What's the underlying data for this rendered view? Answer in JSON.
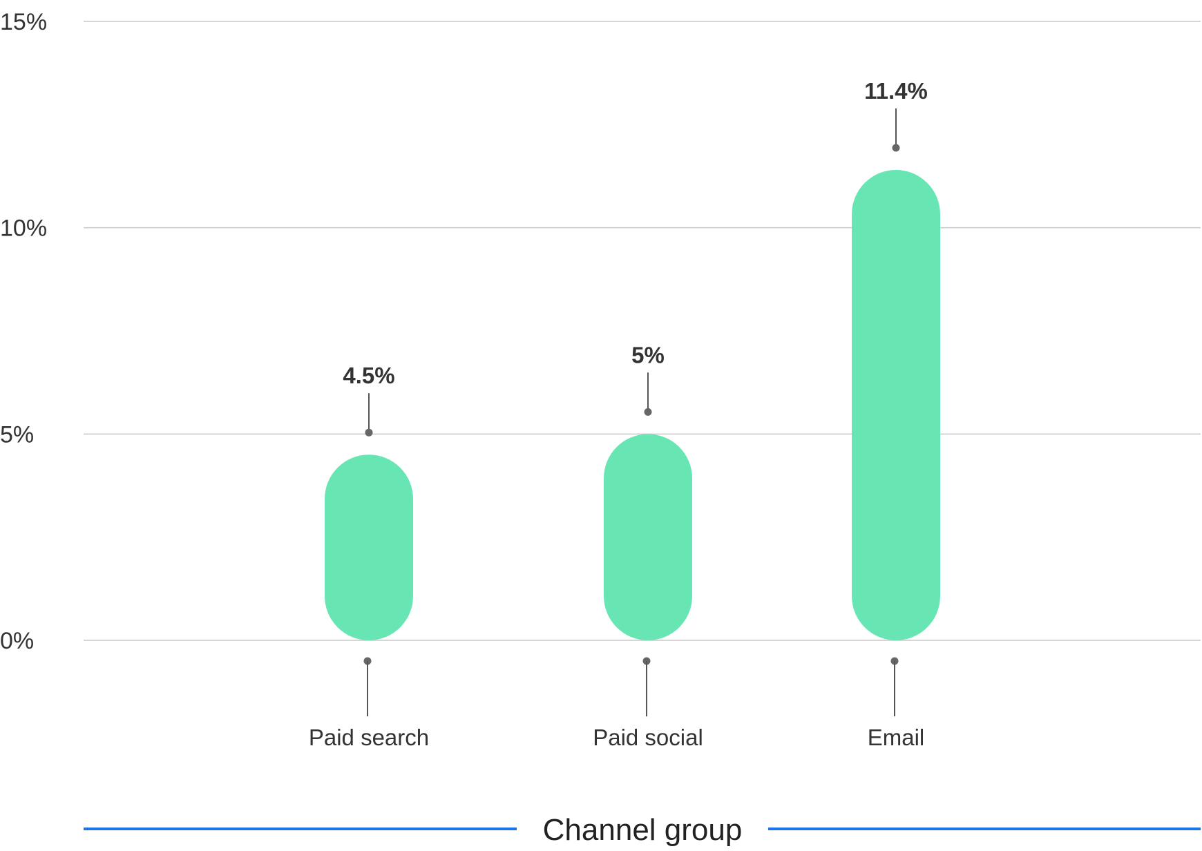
{
  "colors": {
    "bar": "#67e6b4",
    "axis_rule": "#1a73e8",
    "gridline": "#c8c8c8",
    "text": "#333333"
  },
  "chart_data": {
    "type": "bar",
    "categories": [
      "Paid search",
      "Paid social",
      "Email"
    ],
    "values": [
      4.5,
      5,
      11.4
    ],
    "value_labels": [
      "4.5%",
      "5%",
      "11.4%"
    ],
    "ylim": [
      0,
      15
    ],
    "yticks": [
      0,
      5,
      10,
      15
    ],
    "ytick_labels": [
      "0%",
      "5%",
      "10%",
      "15%"
    ],
    "xlabel": "Channel group",
    "ylabel": "",
    "grid": true,
    "bar_style": "rounded"
  }
}
